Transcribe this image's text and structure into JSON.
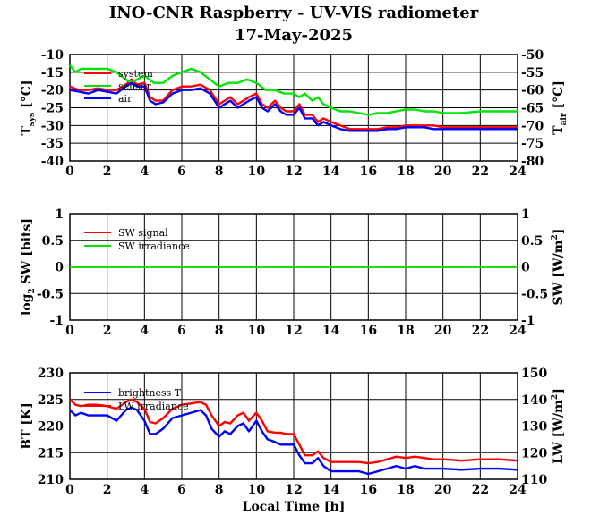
{
  "title": "INO-CNR Raspberry - UV-VIS radiometer",
  "subtitle": "17-May-2025",
  "xlabel": "Local Time [h]",
  "colors": {
    "system": "#ff0000",
    "sensor": "#00e600",
    "air": "#0000ff",
    "sw_signal": "#ff0000",
    "sw_irradiance": "#00e600",
    "brightness": "#0000ff",
    "lw": "#ff0000"
  },
  "chart_data": [
    {
      "type": "line",
      "ylabel_left": "T",
      "ylabel_left_sub": "sys",
      "ylabel_left_unit": "[°C]",
      "ylabel_right": "T",
      "ylabel_right_sub": "air",
      "ylabel_right_unit": "[°C]",
      "xlim": [
        0,
        24
      ],
      "ylim": [
        -40,
        -10
      ],
      "ylim_right": [
        -80,
        -50
      ],
      "xticks": [
        "0",
        "2",
        "4",
        "6",
        "8",
        "10",
        "12",
        "14",
        "16",
        "18",
        "20",
        "22",
        "24"
      ],
      "yticks": [
        "-10",
        "-15",
        "-20",
        "-25",
        "-30",
        "-35",
        "-40"
      ],
      "yticks_right": [
        "-50",
        "-55",
        "-60",
        "-65",
        "-70",
        "-75",
        "-80"
      ],
      "grid": true,
      "legend": "top-left",
      "series": [
        {
          "name": "system",
          "axis": "left",
          "color": "#ff0000",
          "x": [
            0,
            0.5,
            1,
            1.5,
            2,
            2.5,
            3,
            3.3,
            3.6,
            4,
            4.3,
            4.6,
            5,
            5.5,
            6,
            6.5,
            7,
            7.5,
            8,
            8.3,
            8.6,
            9,
            9.3,
            9.6,
            10,
            10.3,
            10.6,
            11,
            11.3,
            11.6,
            12,
            12.3,
            12.6,
            13,
            13.3,
            13.6,
            14,
            14.5,
            15,
            15.5,
            16,
            16.5,
            17,
            17.5,
            18,
            18.5,
            19,
            19.5,
            20,
            21,
            22,
            23,
            24
          ],
          "y": [
            -19,
            -20,
            -20,
            -19.5,
            -20,
            -20,
            -18.5,
            -17,
            -18.5,
            -18,
            -22,
            -23,
            -23,
            -20,
            -19,
            -19,
            -18.5,
            -20,
            -24,
            -23,
            -22,
            -24,
            -23,
            -22,
            -21,
            -24,
            -25,
            -23,
            -25,
            -26,
            -26,
            -24,
            -27,
            -27,
            -29,
            -28,
            -29,
            -30,
            -31,
            -31,
            -31,
            -31,
            -30.5,
            -30.5,
            -30,
            -30,
            -30,
            -30,
            -30.5,
            -30.5,
            -30.5,
            -30.5,
            -30.5
          ]
        },
        {
          "name": "sensor",
          "axis": "right",
          "color": "#00e600",
          "x": [
            0,
            0.3,
            0.6,
            1,
            1.5,
            2,
            2.5,
            3,
            3.3,
            3.6,
            4,
            4.5,
            5,
            5.5,
            6,
            6.5,
            7,
            7.5,
            8,
            8.5,
            9,
            9.5,
            10,
            10.5,
            11,
            11.5,
            12,
            12.3,
            12.6,
            13,
            13.3,
            13.6,
            14,
            14.5,
            15,
            15.5,
            16,
            16.5,
            17,
            17.5,
            18,
            18.5,
            19,
            19.5,
            20,
            21,
            22,
            23,
            24
          ],
          "y": [
            -53,
            -55,
            -54,
            -54,
            -54,
            -54,
            -55,
            -57,
            -58,
            -57,
            -56,
            -58,
            -58,
            -56,
            -55,
            -54,
            -55,
            -57,
            -59,
            -58,
            -58,
            -57,
            -58,
            -60,
            -60,
            -61,
            -61,
            -62,
            -61,
            -63,
            -62,
            -64,
            -65,
            -66,
            -66,
            -66.5,
            -67,
            -66.5,
            -66.5,
            -66,
            -65.5,
            -65.5,
            -66,
            -66,
            -66.5,
            -66.5,
            -66,
            -66,
            -66
          ]
        },
        {
          "name": "air",
          "axis": "left",
          "color": "#0000ff",
          "x": [
            0,
            0.5,
            1,
            1.5,
            2,
            2.5,
            3,
            3.3,
            3.6,
            4,
            4.3,
            4.6,
            5,
            5.5,
            6,
            6.5,
            7,
            7.5,
            8,
            8.3,
            8.6,
            9,
            9.3,
            9.6,
            10,
            10.3,
            10.6,
            11,
            11.3,
            11.6,
            12,
            12.3,
            12.6,
            13,
            13.3,
            13.6,
            14,
            14.5,
            15,
            15.5,
            16,
            16.5,
            17,
            17.5,
            18,
            18.5,
            19,
            19.5,
            20,
            21,
            22,
            23,
            24
          ],
          "y": [
            -20,
            -20.5,
            -21,
            -20,
            -20.5,
            -21,
            -19,
            -18,
            -19,
            -19,
            -23,
            -24,
            -23.5,
            -21,
            -20,
            -20,
            -19.5,
            -21,
            -25,
            -24,
            -23,
            -25,
            -24,
            -23,
            -22,
            -25,
            -26,
            -24,
            -26,
            -27,
            -27,
            -25,
            -28,
            -28,
            -30,
            -29,
            -30,
            -31,
            -31.5,
            -31.5,
            -31.5,
            -31.5,
            -31,
            -31,
            -30.5,
            -30.5,
            -30.5,
            -31,
            -31,
            -31,
            -31,
            -31,
            -31
          ]
        }
      ]
    },
    {
      "type": "line",
      "ylabel_left": "log",
      "ylabel_left_sub": "2",
      "ylabel_left_unit": "SW [bits]",
      "ylabel_right": "SW [W/m",
      "ylabel_right_sup": "2",
      "ylabel_right_unit": "]",
      "xlim": [
        0,
        24
      ],
      "ylim": [
        -1,
        1
      ],
      "ylim_right": [
        -1,
        1
      ],
      "xticks": [
        "0",
        "2",
        "4",
        "6",
        "8",
        "10",
        "12",
        "14",
        "16",
        "18",
        "20",
        "22",
        "24"
      ],
      "yticks": [
        "1",
        "0.5",
        "0",
        "-0.5",
        "-1"
      ],
      "yticks_right": [
        "1",
        "0.5",
        "0",
        "-0.5",
        "-1"
      ],
      "grid": true,
      "legend": "top-left",
      "series": [
        {
          "name": "SW signal",
          "axis": "left",
          "color": "#ff0000",
          "x": [
            0,
            24
          ],
          "y": [
            0,
            0
          ]
        },
        {
          "name": "SW irradiance",
          "axis": "right",
          "color": "#00e600",
          "x": [
            0,
            24
          ],
          "y": [
            0,
            0
          ]
        }
      ]
    },
    {
      "type": "line",
      "ylabel_left": "BT [K]",
      "ylabel_right": "LW [W/m",
      "ylabel_right_sup": "2",
      "ylabel_right_unit": "]",
      "xlim": [
        0,
        24
      ],
      "ylim": [
        210,
        230
      ],
      "ylim_right": [
        110,
        150
      ],
      "xticks": [
        "0",
        "2",
        "4",
        "6",
        "8",
        "10",
        "12",
        "14",
        "16",
        "18",
        "20",
        "22",
        "24"
      ],
      "yticks": [
        "230",
        "225",
        "220",
        "215",
        "210"
      ],
      "yticks_right": [
        "150",
        "140",
        "130",
        "120",
        "110"
      ],
      "grid": true,
      "legend": "top-left",
      "series": [
        {
          "name": "brightness T",
          "axis": "left",
          "color": "#0000ff",
          "x": [
            0,
            0.3,
            0.6,
            1,
            1.5,
            2,
            2.5,
            3,
            3.3,
            3.6,
            4,
            4.3,
            4.6,
            5,
            5.5,
            6,
            6.5,
            7,
            7.3,
            7.6,
            8,
            8.3,
            8.6,
            9,
            9.3,
            9.6,
            10,
            10.3,
            10.6,
            11,
            11.3,
            11.6,
            12,
            12.3,
            12.6,
            13,
            13.3,
            13.6,
            14,
            14.5,
            15,
            15.5,
            16,
            16.5,
            17,
            17.5,
            18,
            18.5,
            19,
            19.5,
            20,
            21,
            22,
            23,
            24
          ],
          "y": [
            223,
            222,
            222.5,
            222,
            222,
            222,
            221,
            223,
            223.5,
            223,
            221,
            218.5,
            218.5,
            219.5,
            221.5,
            222,
            222.5,
            223,
            222,
            219.5,
            218,
            219,
            218.5,
            220,
            220.5,
            219,
            221,
            219,
            217.5,
            217,
            216.5,
            216.5,
            216.5,
            214.5,
            213,
            213,
            214,
            212.5,
            211.5,
            211.5,
            211.5,
            211.5,
            211,
            211.5,
            212,
            212.5,
            212,
            212.5,
            212,
            212,
            212,
            211.8,
            212,
            212,
            211.8
          ]
        },
        {
          "name": "LW irradiance",
          "axis": "right",
          "color": "#ff0000",
          "x": [
            0,
            0.3,
            0.6,
            1,
            1.5,
            2,
            2.5,
            3,
            3.3,
            3.6,
            4,
            4.3,
            4.6,
            5,
            5.5,
            6,
            6.5,
            7,
            7.3,
            7.6,
            8,
            8.3,
            8.6,
            9,
            9.3,
            9.6,
            10,
            10.3,
            10.6,
            11,
            11.3,
            11.6,
            12,
            12.3,
            12.6,
            13,
            13.3,
            13.6,
            14,
            14.5,
            15,
            15.5,
            16,
            16.5,
            17,
            17.5,
            18,
            18.5,
            19,
            19.5,
            20,
            21,
            22,
            23,
            24
          ],
          "y": [
            140,
            138,
            137.5,
            138,
            138,
            137.5,
            136.5,
            139,
            140,
            139,
            136.5,
            131.5,
            131,
            133,
            136.5,
            138,
            138.5,
            139,
            138,
            134,
            130,
            131.5,
            131,
            134,
            135,
            132,
            135,
            132,
            128,
            127.5,
            127.5,
            127,
            127,
            123,
            119,
            119,
            120.5,
            118,
            116.5,
            116.5,
            116.5,
            116.5,
            116,
            116.5,
            117.5,
            118.5,
            118,
            118.5,
            118,
            117.5,
            117.5,
            117,
            117.5,
            117.5,
            117
          ]
        }
      ]
    }
  ]
}
